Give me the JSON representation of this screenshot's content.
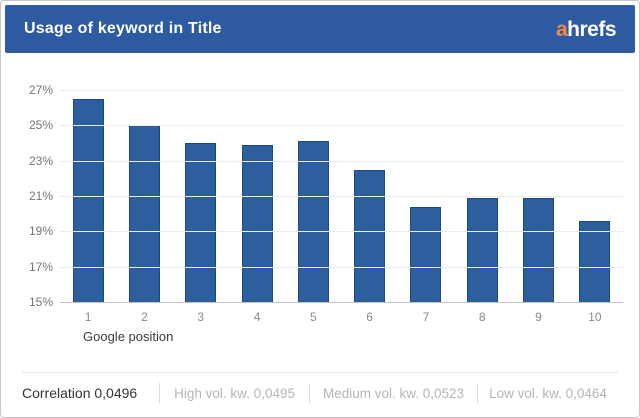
{
  "header": {
    "title": "Usage of keyword in Title",
    "logo_prefix": "a",
    "logo_rest": "hrefs"
  },
  "colors": {
    "header_bg": "#2d5aa0",
    "logo_orange": "#ee8944",
    "bar_fill": "#2d5f9f",
    "bar_border": "#1d4878",
    "gridline": "#ececec",
    "axis_baseline": "#c4c4c4",
    "ytick_text": "#757575",
    "xtick_text": "#8a8a8a",
    "footer_muted": "#b5b5b5",
    "footer_dark": "#333333"
  },
  "chart_data": {
    "type": "bar",
    "title": "Usage of keyword in Title",
    "categories": [
      "1",
      "2",
      "3",
      "4",
      "5",
      "6",
      "7",
      "8",
      "9",
      "10"
    ],
    "values": [
      26.5,
      25.0,
      24.0,
      23.9,
      24.1,
      22.5,
      20.4,
      20.9,
      20.9,
      19.6
    ],
    "xlabel": "Google position",
    "ylabel": "",
    "ylim": [
      15,
      27
    ],
    "ytick_step": 2,
    "ytick_suffix": "%",
    "grid": true,
    "legend": false
  },
  "footer": {
    "items": [
      {
        "label": "Correlation 0,0496",
        "emphasis": true
      },
      {
        "label": "High vol. kw. 0,0495",
        "emphasis": false
      },
      {
        "label": "Medium vol. kw. 0,0523",
        "emphasis": false
      },
      {
        "label": "Low vol. kw. 0,0464",
        "emphasis": false
      }
    ]
  }
}
